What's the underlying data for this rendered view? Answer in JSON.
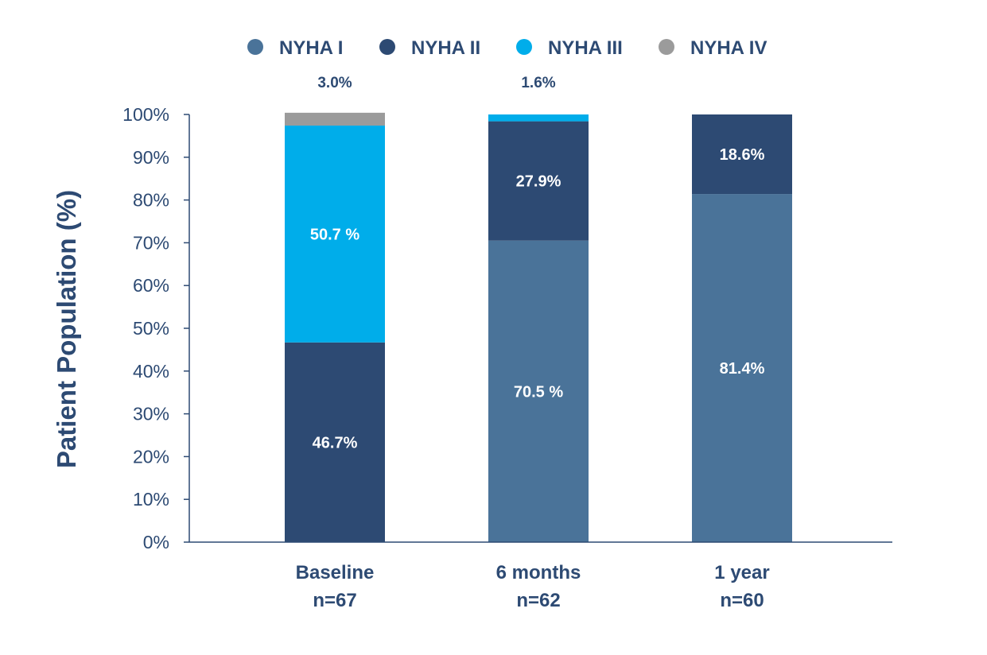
{
  "chart_data": {
    "type": "bar",
    "stacked": true,
    "title": "",
    "xlabel": "",
    "ylabel": "Patient Population (%)",
    "ylim": [
      0,
      100
    ],
    "yticks": [
      "0%",
      "10%",
      "20%",
      "30%",
      "40%",
      "50%",
      "60%",
      "70%",
      "80%",
      "90%",
      "100%"
    ],
    "grid": false,
    "legend_position": "top",
    "categories": [
      {
        "label": "Baseline",
        "sublabel": "n=67"
      },
      {
        "label": "6 months",
        "sublabel": "n=62"
      },
      {
        "label": "1 year",
        "sublabel": "n=60"
      }
    ],
    "series": [
      {
        "name": "NYHA I",
        "color": "#4a7399",
        "values": [
          0,
          70.5,
          81.4
        ],
        "labels": [
          "",
          "70.5 %",
          "81.4%"
        ]
      },
      {
        "name": "NYHA II",
        "color": "#2d4a73",
        "values": [
          46.7,
          27.9,
          18.6
        ],
        "labels": [
          "46.7%",
          "27.9%",
          "18.6%"
        ]
      },
      {
        "name": "NYHA III",
        "color": "#00adea",
        "values": [
          50.7,
          1.6,
          0
        ],
        "labels": [
          "50.7 %",
          "1.6%",
          ""
        ]
      },
      {
        "name": "NYHA IV",
        "color": "#9b9b9b",
        "values": [
          3.0,
          0,
          0
        ],
        "labels": [
          "3.0%",
          "",
          ""
        ]
      }
    ]
  }
}
